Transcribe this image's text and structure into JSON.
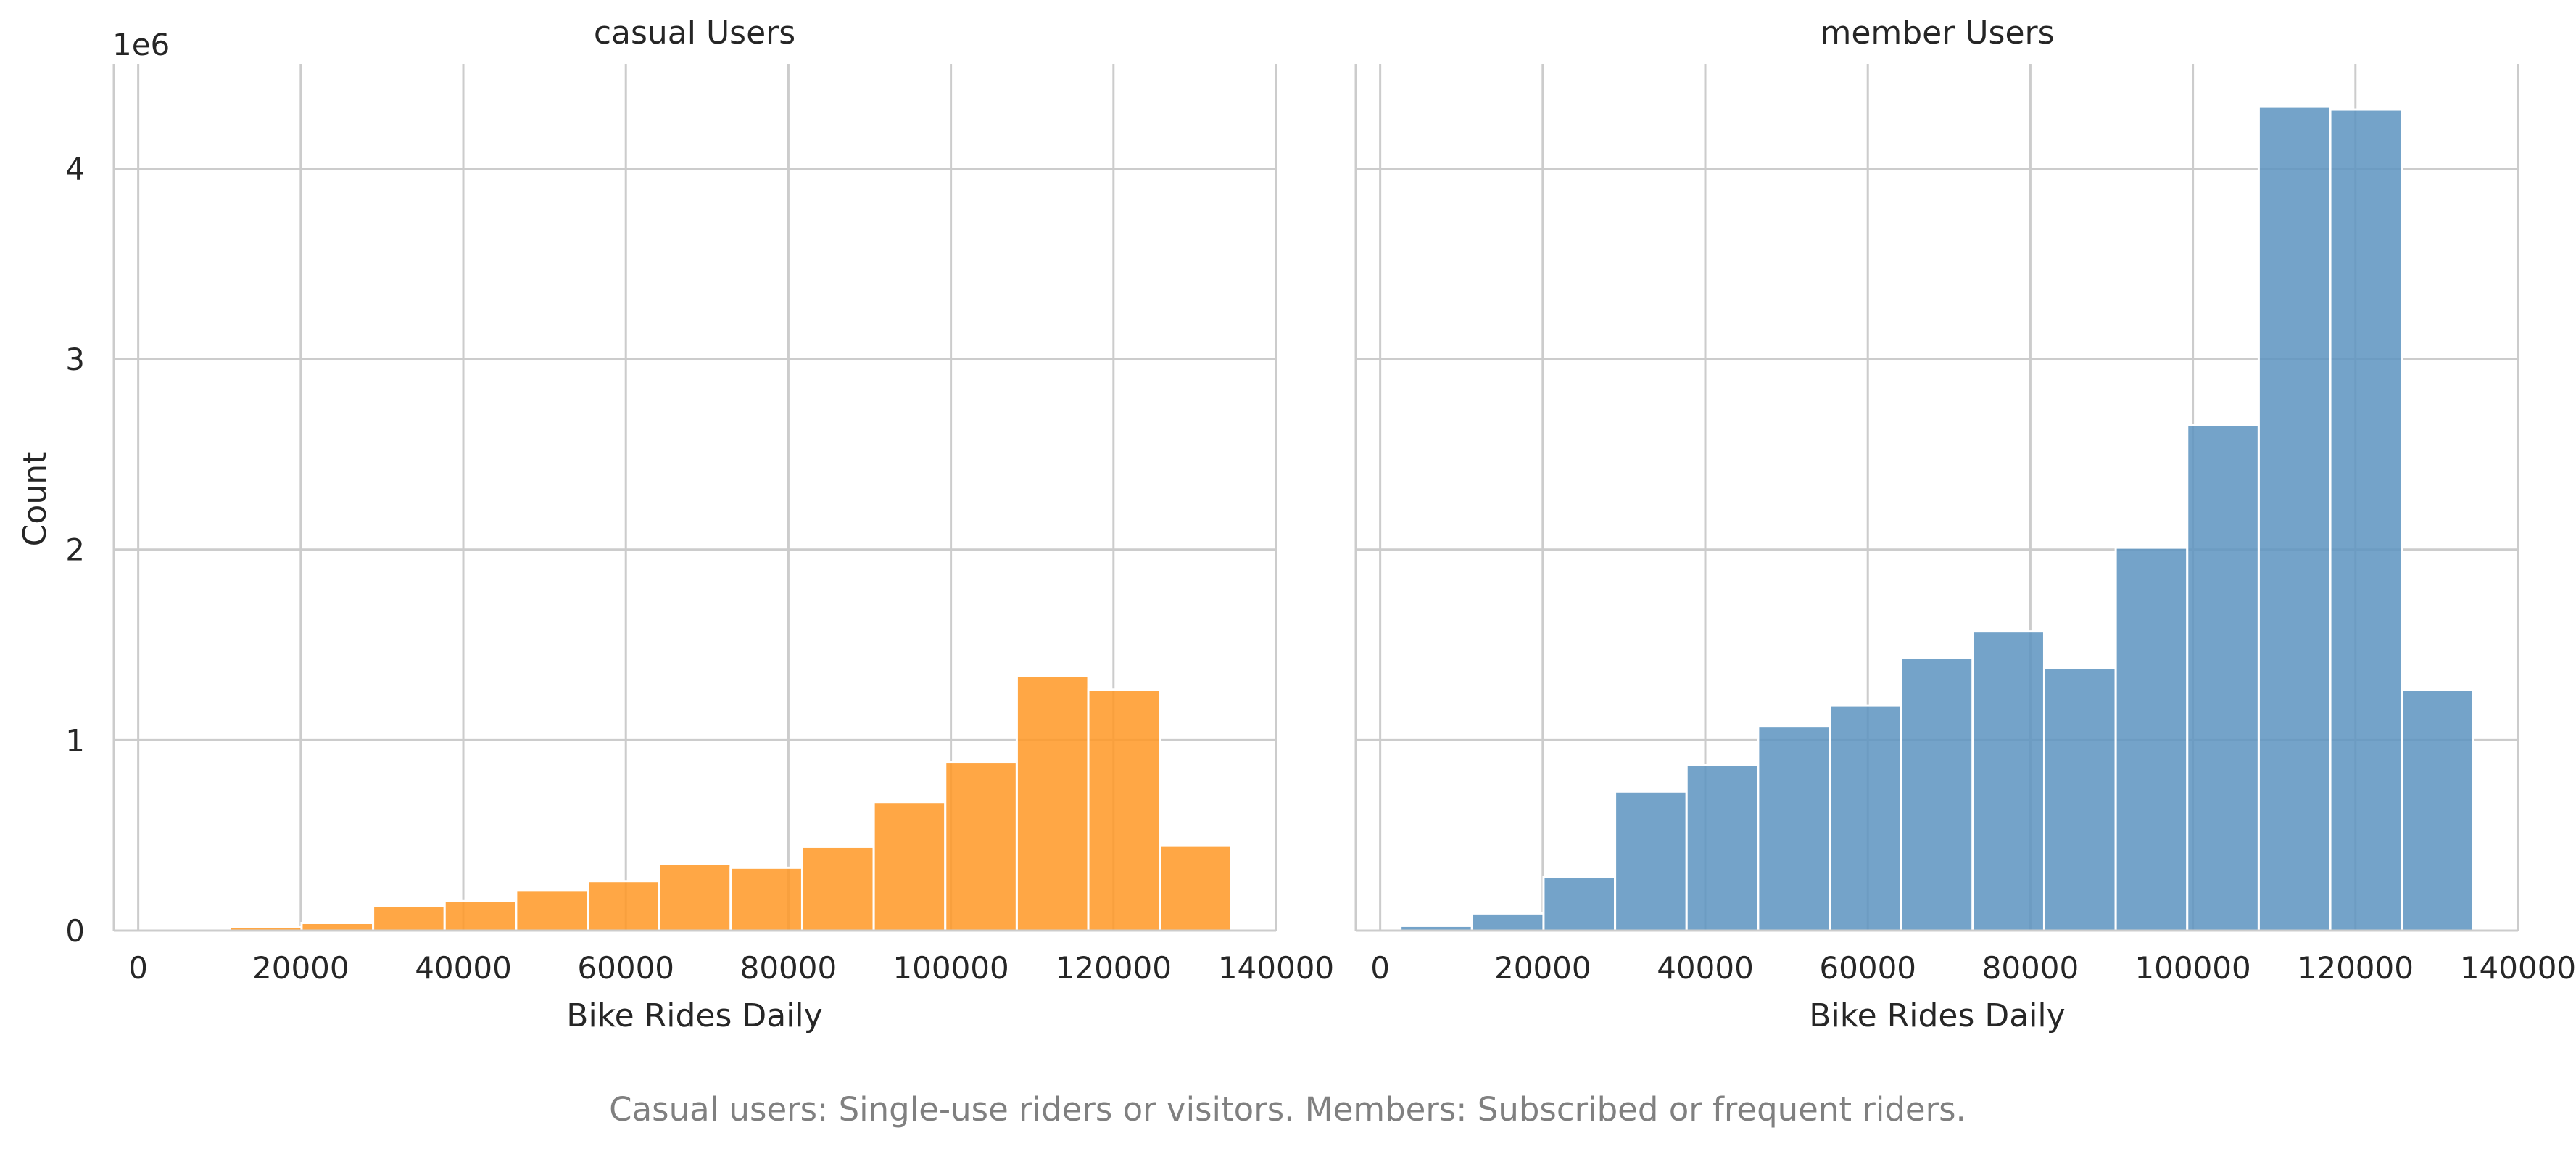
{
  "figure": {
    "caption": "Casual users: Single-use riders or visitors. Members: Subscribed or frequent riders."
  },
  "colors": {
    "casual": "#FF9824",
    "member": "#5C93C0",
    "grid": "#cccccc",
    "caption": "#808080"
  },
  "chart_data": [
    {
      "type": "bar",
      "title": "casual Users",
      "xlabel": "Bike Rides Daily",
      "ylabel": "Count",
      "y_offset_label": "1e6",
      "xlim": [
        -3000,
        140000
      ],
      "ylim": [
        0,
        4.55
      ],
      "xticks": [
        0,
        20000,
        40000,
        60000,
        80000,
        100000,
        120000,
        140000
      ],
      "xtick_labels": [
        "0",
        "20000",
        "40000",
        "60000",
        "80000",
        "100000",
        "120000",
        "140000"
      ],
      "yticks": [
        0,
        1,
        2,
        3,
        4
      ],
      "ytick_labels": [
        "0",
        "1",
        "2",
        "3",
        "4"
      ],
      "grid": true,
      "bin_edges": [
        2500,
        11300,
        20100,
        28900,
        37700,
        46500,
        55300,
        64100,
        72900,
        81700,
        90500,
        99300,
        108100,
        116900,
        125700,
        134500
      ],
      "values": [
        0.005,
        0.02,
        0.04,
        0.13,
        0.155,
        0.21,
        0.26,
        0.35,
        0.33,
        0.44,
        0.675,
        0.885,
        1.335,
        1.265,
        0.445
      ]
    },
    {
      "type": "bar",
      "title": "member Users",
      "xlabel": "Bike Rides Daily",
      "ylabel": "",
      "xlim": [
        -3000,
        140000
      ],
      "ylim": [
        0,
        4.55
      ],
      "xticks": [
        0,
        20000,
        40000,
        60000,
        80000,
        100000,
        120000,
        140000
      ],
      "xtick_labels": [
        "0",
        "20000",
        "40000",
        "60000",
        "80000",
        "100000",
        "120000",
        "140000"
      ],
      "yticks": [
        0,
        1,
        2,
        3,
        4
      ],
      "grid": true,
      "bin_edges": [
        2500,
        11300,
        20100,
        28900,
        37700,
        46500,
        55300,
        64100,
        72900,
        81700,
        90500,
        99300,
        108100,
        116900,
        125700,
        134500
      ],
      "values": [
        0.025,
        0.09,
        0.28,
        0.73,
        0.87,
        1.075,
        1.18,
        1.43,
        1.57,
        1.38,
        2.01,
        2.655,
        4.325,
        4.31,
        1.265
      ]
    }
  ]
}
